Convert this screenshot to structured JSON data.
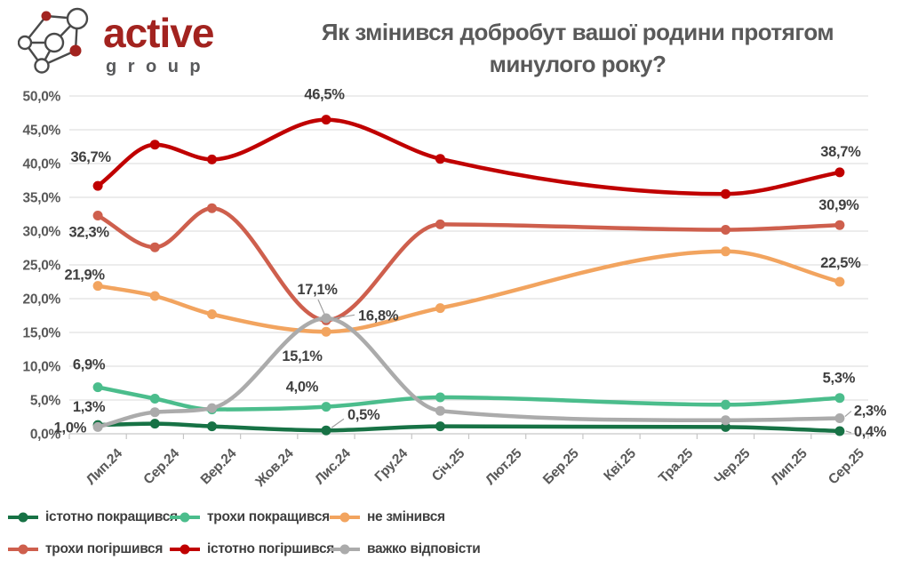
{
  "logo": {
    "brand": "active",
    "sub": "group",
    "brand_color": "#A2231F",
    "sub_color": "#58595B"
  },
  "title": {
    "line1": "Як змінився добробут вашої родини протягом",
    "line2": "минулого року?"
  },
  "chart_data": {
    "type": "line",
    "title": "Як змінився добробут вашої родини протягом минулого року?",
    "categories": [
      "Лип.24",
      "Сер.24",
      "Вер.24",
      "Жов.24",
      "Лис.24",
      "Гру.24",
      "Січ.25",
      "Лют.25",
      "Бер.25",
      "Кві.25",
      "Тра.25",
      "Чер.25",
      "Лип.25",
      "Сер.25"
    ],
    "ylim": [
      0,
      50
    ],
    "ytick_step": 5,
    "ytick_labels": [
      "0,0%",
      "5,0%",
      "10,0%",
      "15,0%",
      "20,0%",
      "25,0%",
      "30,0%",
      "35,0%",
      "40,0%",
      "45,0%",
      "50,0%"
    ],
    "grid": "horizontal-only",
    "legend_position": "bottom-left",
    "colors": {
      "grid": "#D9D9D9",
      "axis": "#C6C6C6",
      "axis_text": "#595959",
      "data_label_text": "#3F3F3F",
      "leader_line": "#A0A0A0",
      "title_text": "#595959"
    },
    "series": [
      {
        "name": "істотно покращився",
        "color": "#177245",
        "x_indices": [
          0,
          1,
          2,
          4,
          6,
          11,
          13
        ],
        "values": [
          1.3,
          1.5,
          1.1,
          0.5,
          1.1,
          1.0,
          0.4
        ],
        "point_labels": {
          "0": "1,3%",
          "3": "0,5%",
          "6": "0,4%"
        }
      },
      {
        "name": "трохи покращився",
        "color": "#4BBD8C",
        "x_indices": [
          0,
          1,
          2,
          4,
          6,
          11,
          13
        ],
        "values": [
          6.9,
          5.2,
          3.6,
          4.0,
          5.4,
          4.3,
          5.3
        ],
        "point_labels": {
          "0": "6,9%",
          "3": "4,0%",
          "6": "5,3%"
        }
      },
      {
        "name": "не змінився",
        "color": "#F2A45F",
        "x_indices": [
          0,
          1,
          2,
          4,
          6,
          11,
          13
        ],
        "values": [
          21.9,
          20.4,
          17.7,
          15.1,
          18.6,
          27.0,
          22.5
        ],
        "point_labels": {
          "0": "21,9%",
          "3": "15,1%",
          "6": "22,5%"
        }
      },
      {
        "name": "трохи погіршився",
        "color": "#CE5F4D",
        "x_indices": [
          0,
          1,
          2,
          4,
          6,
          11,
          13
        ],
        "values": [
          32.3,
          27.6,
          33.4,
          16.8,
          31.0,
          30.2,
          30.9
        ],
        "point_labels": {
          "0": "32,3%",
          "3": "16,8%",
          "6": "30,9%"
        }
      },
      {
        "name": "істотно погіршився",
        "color": "#C00000",
        "x_indices": [
          0,
          1,
          2,
          4,
          6,
          11,
          13
        ],
        "values": [
          36.7,
          42.8,
          40.6,
          46.5,
          40.7,
          35.5,
          38.7
        ],
        "point_labels": {
          "0": "36,7%",
          "3": "46,5%",
          "6": "38,7%"
        }
      },
      {
        "name": "важко відповісти",
        "color": "#ABABAB",
        "x_indices": [
          0,
          1,
          2,
          4,
          6,
          11,
          13
        ],
        "values": [
          1.0,
          3.2,
          3.8,
          17.1,
          3.4,
          2.0,
          2.3
        ],
        "point_labels": {
          "0": "1,0%",
          "3": "17,1%",
          "6": "2,3%"
        }
      }
    ],
    "legend_rows": [
      [
        0,
        1,
        2
      ],
      [
        3,
        4,
        5
      ]
    ]
  }
}
